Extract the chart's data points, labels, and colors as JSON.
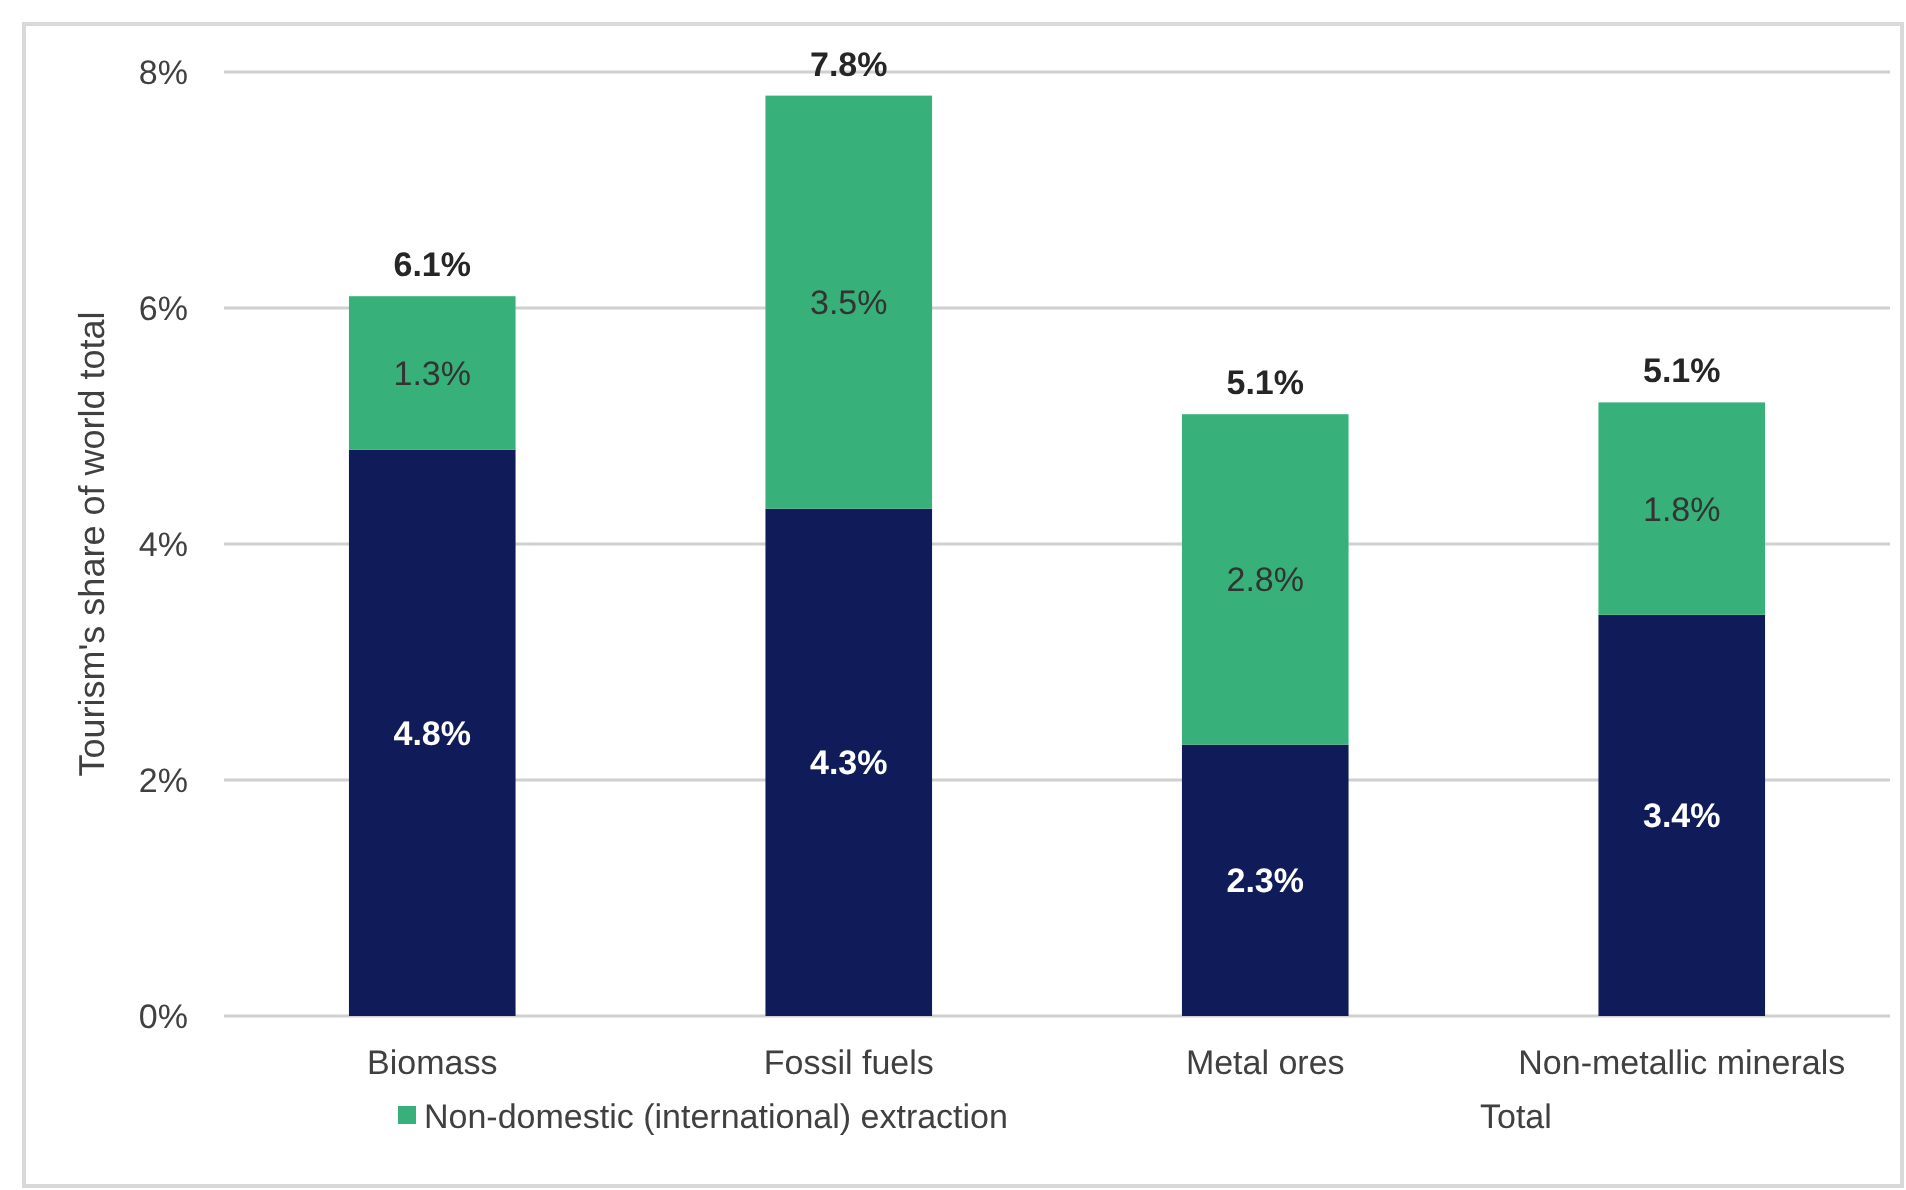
{
  "chart_data": {
    "type": "bar",
    "stacked": true,
    "ylabel": "Tourism's share of world total",
    "categories": [
      "Biomass",
      "Fossil fuels",
      "Metal ores",
      "Non-metallic minerals"
    ],
    "series": [
      {
        "color": "#101c5a",
        "values": [
          4.8,
          4.3,
          2.3,
          3.4
        ],
        "value_labels": [
          "4.8%",
          "4.3%",
          "2.3%",
          "3.4%"
        ]
      },
      {
        "name": "Non-domestic (international) extraction",
        "color": "#37b179",
        "values": [
          1.3,
          3.5,
          2.8,
          1.8
        ],
        "value_labels": [
          "1.3%",
          "3.5%",
          "2.8%",
          "1.8%"
        ]
      }
    ],
    "totals": [
      "6.1%",
      "7.8%",
      "5.1%",
      "5.1%"
    ],
    "annotations": [
      "Total"
    ],
    "ylim": [
      0,
      8
    ],
    "yticks": [
      {
        "value": 0,
        "label": "0%"
      },
      {
        "value": 2,
        "label": "2%"
      },
      {
        "value": 4,
        "label": "4%"
      },
      {
        "value": 6,
        "label": "6%"
      },
      {
        "value": 8,
        "label": "8%"
      }
    ],
    "grid": "y",
    "legend": "bottom"
  }
}
